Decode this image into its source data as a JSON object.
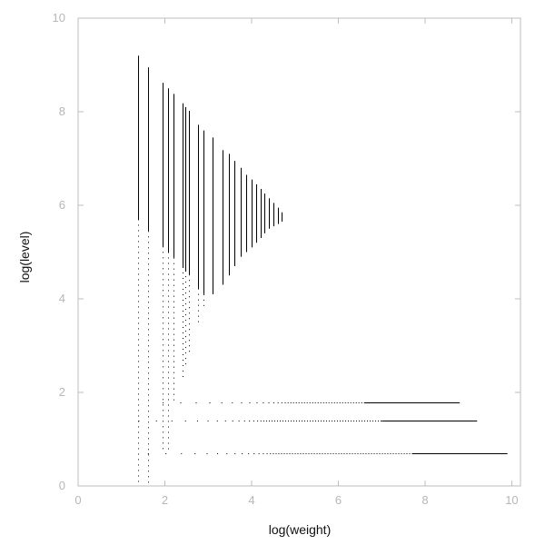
{
  "chart_data": {
    "type": "scatter",
    "title": "",
    "xlabel": "log(weight)",
    "ylabel": "log(level)",
    "xlim": [
      0,
      10.2
    ],
    "ylim": [
      0,
      10
    ],
    "x_ticks": [
      0,
      2,
      4,
      6,
      8,
      10
    ],
    "y_ticks": [
      0,
      2,
      4,
      6,
      8,
      10
    ],
    "x_tick_labels": [
      "0",
      "2",
      "4",
      "6",
      "8",
      "10"
    ],
    "y_tick_labels": [
      "0",
      "2",
      "4",
      "6",
      "8",
      "10"
    ],
    "grid": false,
    "legend": "none",
    "colors": {
      "points": "#000000",
      "frame": "#bdbdbd",
      "ticks": "#b7b7b7"
    },
    "columns": [
      {
        "x": 1.39,
        "y_min": 0.0,
        "y_max": 9.2
      },
      {
        "x": 1.61,
        "y_min": 0.0,
        "y_max": 8.95
      },
      {
        "x": 1.95,
        "y_min": 0.7,
        "y_max": 8.62
      },
      {
        "x": 2.08,
        "y_min": 0.7,
        "y_max": 8.5
      },
      {
        "x": 2.2,
        "y_min": 1.8,
        "y_max": 8.38
      },
      {
        "x": 2.4,
        "y_min": 2.3,
        "y_max": 8.18
      },
      {
        "x": 2.48,
        "y_min": 2.6,
        "y_max": 8.1
      },
      {
        "x": 2.56,
        "y_min": 2.8,
        "y_max": 8.02
      },
      {
        "x": 2.77,
        "y_min": 3.5,
        "y_max": 7.72
      },
      {
        "x": 2.89,
        "y_min": 3.8,
        "y_max": 7.6
      },
      {
        "x": 3.09,
        "y_min": 4.1,
        "y_max": 7.45
      },
      {
        "x": 3.33,
        "y_min": 4.3,
        "y_max": 7.18
      },
      {
        "x": 3.47,
        "y_min": 4.5,
        "y_max": 7.1
      },
      {
        "x": 3.6,
        "y_min": 4.7,
        "y_max": 6.95
      },
      {
        "x": 3.74,
        "y_min": 4.9,
        "y_max": 6.8
      },
      {
        "x": 3.87,
        "y_min": 5.0,
        "y_max": 6.65
      },
      {
        "x": 3.99,
        "y_min": 5.1,
        "y_max": 6.55
      },
      {
        "x": 4.1,
        "y_min": 5.2,
        "y_max": 6.45
      },
      {
        "x": 4.2,
        "y_min": 5.3,
        "y_max": 6.35
      },
      {
        "x": 4.3,
        "y_min": 5.4,
        "y_max": 6.25
      },
      {
        "x": 4.4,
        "y_min": 5.5,
        "y_max": 6.15
      },
      {
        "x": 4.5,
        "y_min": 5.55,
        "y_max": 6.05
      },
      {
        "x": 4.6,
        "y_min": 5.6,
        "y_max": 5.95
      },
      {
        "x": 4.7,
        "y_min": 5.65,
        "y_max": 5.85
      }
    ],
    "rows": [
      {
        "y": 0.69,
        "x_min": 1.61,
        "x_max": 9.9
      },
      {
        "y": 1.39,
        "x_min": 1.39,
        "x_max": 9.2
      },
      {
        "y": 1.79,
        "x_min": 1.95,
        "x_max": 8.8
      }
    ]
  }
}
